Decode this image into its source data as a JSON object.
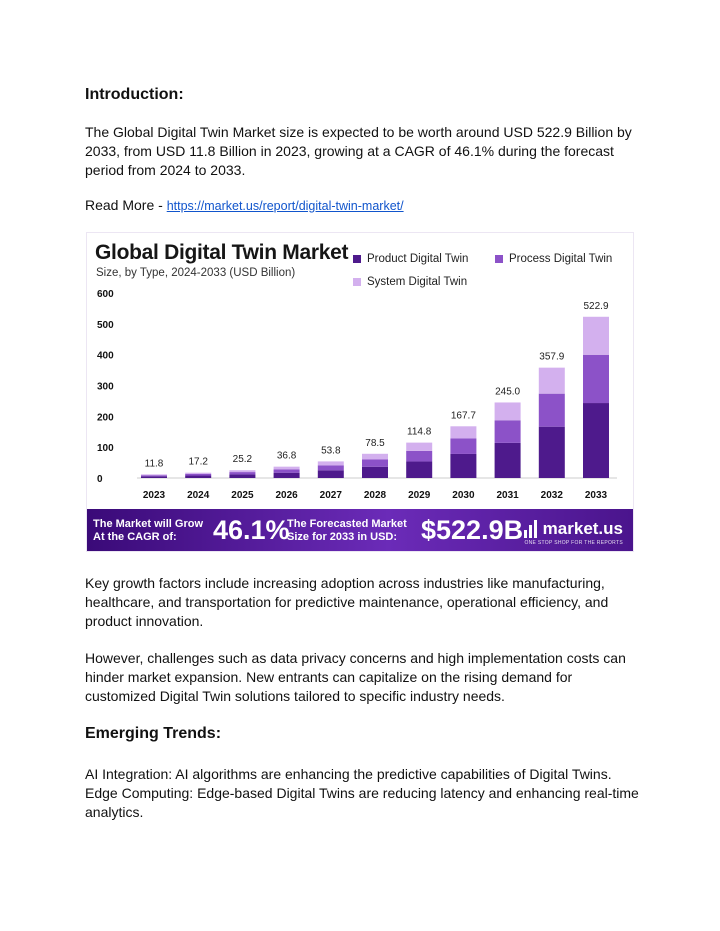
{
  "intro": {
    "heading": "Introduction:",
    "paragraph": "The Global Digital Twin Market size is expected to be worth around USD 522.9 Billion by 2033, from USD 11.8 Billion in 2023, growing at a CAGR of 46.1% during the forecast period from 2024 to 2033.",
    "read_more_label": "Read More - ",
    "read_more_link": "https://market.us/report/digital-twin-market/"
  },
  "infographic": {
    "banner": {
      "cagr_label_line1": "The Market will Grow",
      "cagr_label_line2": "At the CAGR of:",
      "cagr_value": "46.1%",
      "forecast_label_line1": "The Forecasted Market",
      "forecast_label_line2": "Size for 2033 in USD:",
      "forecast_value": "$522.9B",
      "brand_name": "market.us",
      "brand_tagline": "ONE STOP SHOP FOR THE REPORTS"
    }
  },
  "chart_data": {
    "type": "bar",
    "stacked": true,
    "title": "Global Digital Twin Market",
    "subtitle": "Size, by Type, 2024-2033 (USD Billion)",
    "categories": [
      "2023",
      "2024",
      "2025",
      "2026",
      "2027",
      "2028",
      "2029",
      "2030",
      "2031",
      "2032",
      "2033"
    ],
    "totals": [
      11.8,
      17.2,
      25.2,
      36.8,
      53.8,
      78.5,
      114.8,
      167.7,
      245.0,
      357.9,
      522.9
    ],
    "total_labels": [
      "11.8",
      "17.2",
      "25.2",
      "36.8",
      "53.8",
      "78.5",
      "114.8",
      "167.7",
      "245.0",
      "357.9",
      "522.9"
    ],
    "series": [
      {
        "name": "Product Digital Twin",
        "color": "#4e1a8c",
        "values": [
          5.5,
          8.0,
          11.7,
          17.1,
          25.0,
          36.5,
          53.4,
          78.0,
          113.9,
          166.4,
          243.1
        ]
      },
      {
        "name": "Process Digital Twin",
        "color": "#8c52c8",
        "values": [
          3.5,
          5.1,
          7.5,
          11.0,
          16.1,
          23.5,
          34.4,
          50.2,
          73.3,
          107.1,
          156.5
        ]
      },
      {
        "name": "System Digital Twin",
        "color": "#d3b0ee",
        "values": [
          2.8,
          4.1,
          6.0,
          8.7,
          12.7,
          18.5,
          27.0,
          39.5,
          57.8,
          84.4,
          123.3
        ]
      }
    ],
    "y_ticks": [
      0,
      100,
      200,
      300,
      400,
      500,
      600
    ],
    "ylim": [
      0,
      600
    ],
    "grid": false,
    "legend_position": "top-right"
  },
  "growth": {
    "paragraph1": " Key growth factors include increasing adoption across industries like manufacturing, healthcare, and transportation for predictive maintenance, operational efficiency, and product innovation.",
    "paragraph2": " However, challenges such as data privacy concerns and high implementation costs can hinder market expansion. New entrants can capitalize on the rising demand for customized Digital Twin solutions tailored to specific industry needs."
  },
  "trends": {
    "heading": "Emerging Trends:",
    "line1": "AI Integration: AI algorithms are enhancing the predictive capabilities of Digital Twins.",
    "line2": "Edge Computing: Edge-based Digital Twins are reducing latency and enhancing real-time analytics."
  }
}
